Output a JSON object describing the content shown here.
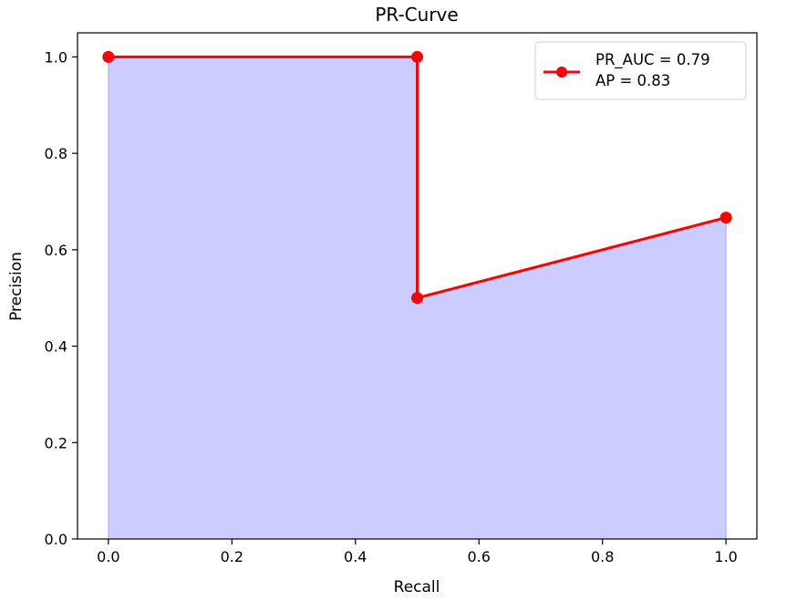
{
  "chart_data": {
    "type": "line",
    "title": "PR-Curve",
    "xlabel": "Recall",
    "ylabel": "Precision",
    "xlim": [
      -0.05,
      1.05
    ],
    "ylim": [
      0.0,
      1.05
    ],
    "xticks": [
      "0.0",
      "0.2",
      "0.4",
      "0.6",
      "0.8",
      "1.0"
    ],
    "yticks": [
      "0.0",
      "0.2",
      "0.4",
      "0.6",
      "0.8",
      "1.0"
    ],
    "grid": false,
    "legend_position": "top-right",
    "legend_lines": [
      "PR_AUC = 0.79",
      "AP = 0.83"
    ],
    "series": [
      {
        "x": [
          0.0,
          0.5,
          0.5,
          1.0
        ],
        "y": [
          1.0,
          1.0,
          0.5,
          0.6667
        ],
        "color": "#ff0000",
        "marker": "circle"
      }
    ],
    "fill_color": "#ccccff",
    "fill_edge_color": "#aaaaee"
  }
}
